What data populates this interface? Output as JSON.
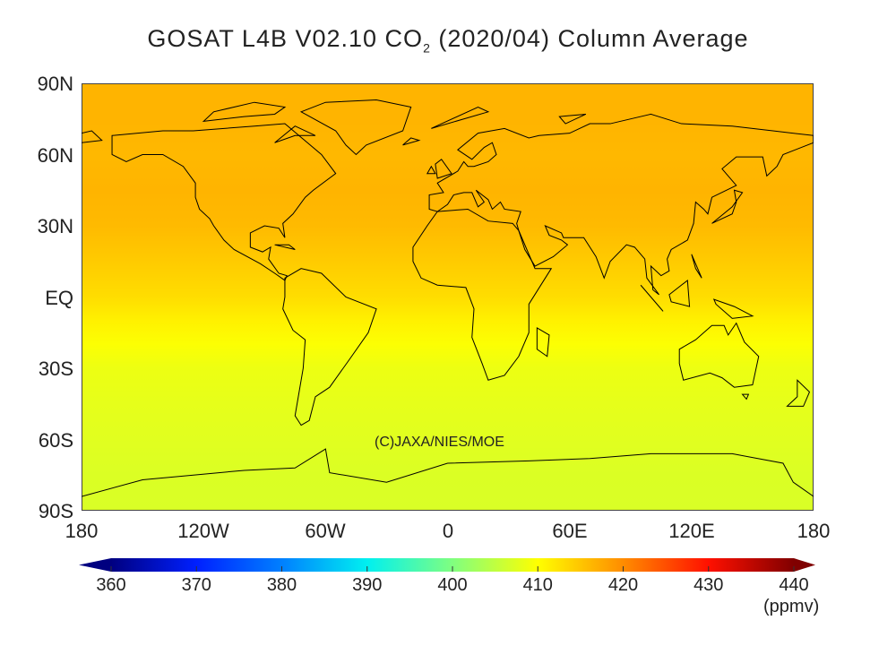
{
  "title": {
    "prefix": "GOSAT L4B V02.10 CO",
    "subscript": "2",
    "suffix": " (2020/04) Column Average"
  },
  "copyright": "(C)JAXA/NIES/MOE",
  "chart_data": {
    "type": "heatmap",
    "projection": "equirectangular",
    "lat_ticks": [
      "90N",
      "60N",
      "30N",
      "EQ",
      "30S",
      "60S",
      "90S"
    ],
    "lon_ticks": [
      "180",
      "120W",
      "60W",
      "0",
      "60E",
      "120E",
      "180"
    ],
    "zonal_mean_approx": {
      "lat": [
        90,
        75,
        60,
        45,
        30,
        15,
        0,
        -10,
        -20,
        -30,
        -45,
        -60,
        -75,
        -90
      ],
      "value": [
        416.5,
        416.5,
        416.2,
        416.5,
        416,
        414.5,
        413,
        411.2,
        409.8,
        408.6,
        408,
        407.6,
        407.2,
        407
      ]
    },
    "colorbar": {
      "min": 360,
      "max": 440,
      "ticks": [
        "360",
        "370",
        "380",
        "390",
        "400",
        "410",
        "420",
        "430",
        "440"
      ],
      "unit": "(ppmv)",
      "extend": "both",
      "colors": [
        "#000080",
        "#0020ff",
        "#0080ff",
        "#00f0f0",
        "#80ff80",
        "#ffff00",
        "#ff8c00",
        "#ff1000",
        "#800000"
      ]
    },
    "coastline_color": "#000000"
  }
}
